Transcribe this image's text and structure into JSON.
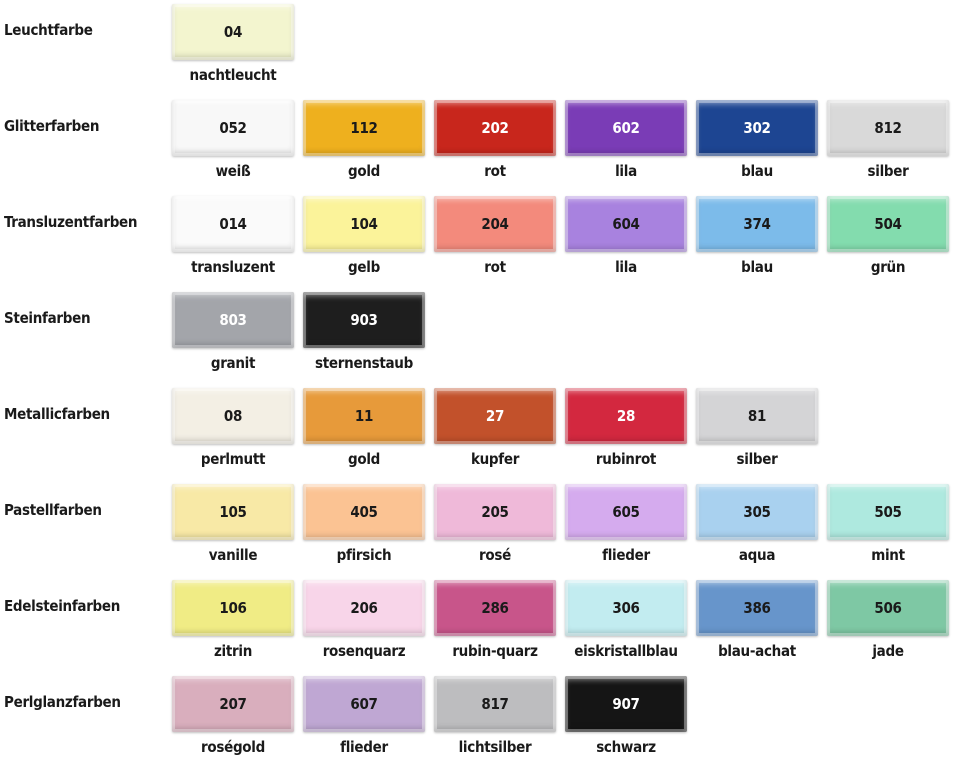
{
  "rows": [
    {
      "label": "Leuchtfarbe",
      "items": [
        {
          "code": "04",
          "name": "nachtleucht",
          "color": "#f3f5cf",
          "text": "#1a1a1a"
        }
      ]
    },
    {
      "label": "Glitterfarben",
      "items": [
        {
          "code": "052",
          "name": "weiß",
          "color": "#f8f8f8",
          "text": "#1a1a1a"
        },
        {
          "code": "112",
          "name": "gold",
          "color": "#eeb01e",
          "text": "#1a1a1a"
        },
        {
          "code": "202",
          "name": "rot",
          "color": "#c8261c",
          "text": "#ffffff"
        },
        {
          "code": "602",
          "name": "lila",
          "color": "#7a3cb6",
          "text": "#ffffff"
        },
        {
          "code": "302",
          "name": "blau",
          "color": "#1d4592",
          "text": "#ffffff"
        },
        {
          "code": "812",
          "name": "silber",
          "color": "#d9d9d9",
          "text": "#1a1a1a"
        }
      ]
    },
    {
      "label": "Transluzentfarben",
      "items": [
        {
          "code": "014",
          "name": "transluzent",
          "color": "#fafafa",
          "text": "#1a1a1a"
        },
        {
          "code": "104",
          "name": "gelb",
          "color": "#fbf39a",
          "text": "#1a1a1a"
        },
        {
          "code": "204",
          "name": "rot",
          "color": "#f38a7c",
          "text": "#1a1a1a"
        },
        {
          "code": "604",
          "name": "lila",
          "color": "#a882df",
          "text": "#1a1a1a"
        },
        {
          "code": "374",
          "name": "blau",
          "color": "#7cbbea",
          "text": "#1a1a1a"
        },
        {
          "code": "504",
          "name": "grün",
          "color": "#83dcae",
          "text": "#1a1a1a"
        }
      ]
    },
    {
      "label": "Steinfarben",
      "items": [
        {
          "code": "803",
          "name": "granit",
          "color": "#a3a5aa",
          "text": "#ffffff"
        },
        {
          "code": "903",
          "name": "sternenstaub",
          "color": "#1e1e1e",
          "text": "#ffffff"
        }
      ]
    },
    {
      "label": "Metallicfarben",
      "items": [
        {
          "code": "08",
          "name": "perlmutt",
          "color": "#f3efe4",
          "text": "#1a1a1a"
        },
        {
          "code": "11",
          "name": "gold",
          "color": "#e79a3a",
          "text": "#1a1a1a"
        },
        {
          "code": "27",
          "name": "kupfer",
          "color": "#c2512b",
          "text": "#ffffff"
        },
        {
          "code": "28",
          "name": "rubinrot",
          "color": "#d3283f",
          "text": "#ffffff"
        },
        {
          "code": "81",
          "name": "silber",
          "color": "#d4d4d6",
          "text": "#1a1a1a"
        }
      ]
    },
    {
      "label": "Pastellfarben",
      "items": [
        {
          "code": "105",
          "name": "vanille",
          "color": "#f8e9a6",
          "text": "#1a1a1a"
        },
        {
          "code": "405",
          "name": "pfirsich",
          "color": "#fbc393",
          "text": "#1a1a1a"
        },
        {
          "code": "205",
          "name": "rosé",
          "color": "#efb9d9",
          "text": "#1a1a1a"
        },
        {
          "code": "605",
          "name": "flieder",
          "color": "#d5abee",
          "text": "#1a1a1a"
        },
        {
          "code": "305",
          "name": "aqua",
          "color": "#a9d1ef",
          "text": "#1a1a1a"
        },
        {
          "code": "505",
          "name": "mint",
          "color": "#aee9df",
          "text": "#1a1a1a"
        }
      ]
    },
    {
      "label": "Edelsteinfarben",
      "items": [
        {
          "code": "106",
          "name": "zitrin",
          "color": "#f0ec85",
          "text": "#1a1a1a"
        },
        {
          "code": "206",
          "name": "rosenquarz",
          "color": "#f8d5e9",
          "text": "#1a1a1a"
        },
        {
          "code": "286",
          "name": "rubin-quarz",
          "color": "#c8558a",
          "text": "#1a1a1a"
        },
        {
          "code": "306",
          "name": "eiskristallblau",
          "color": "#c2ecf0",
          "text": "#1a1a1a"
        },
        {
          "code": "386",
          "name": "blau-achat",
          "color": "#6795cb",
          "text": "#1a1a1a"
        },
        {
          "code": "506",
          "name": "jade",
          "color": "#7ec8a4",
          "text": "#1a1a1a"
        }
      ]
    },
    {
      "label": "Perlglanzfarben",
      "items": [
        {
          "code": "207",
          "name": "roségold",
          "color": "#d9aebd",
          "text": "#1a1a1a"
        },
        {
          "code": "607",
          "name": "flieder",
          "color": "#bfa7d3",
          "text": "#1a1a1a"
        },
        {
          "code": "817",
          "name": "lichtsilber",
          "color": "#bdbdbf",
          "text": "#1a1a1a"
        },
        {
          "code": "907",
          "name": "schwarz",
          "color": "#151515",
          "text": "#ffffff"
        }
      ]
    }
  ]
}
